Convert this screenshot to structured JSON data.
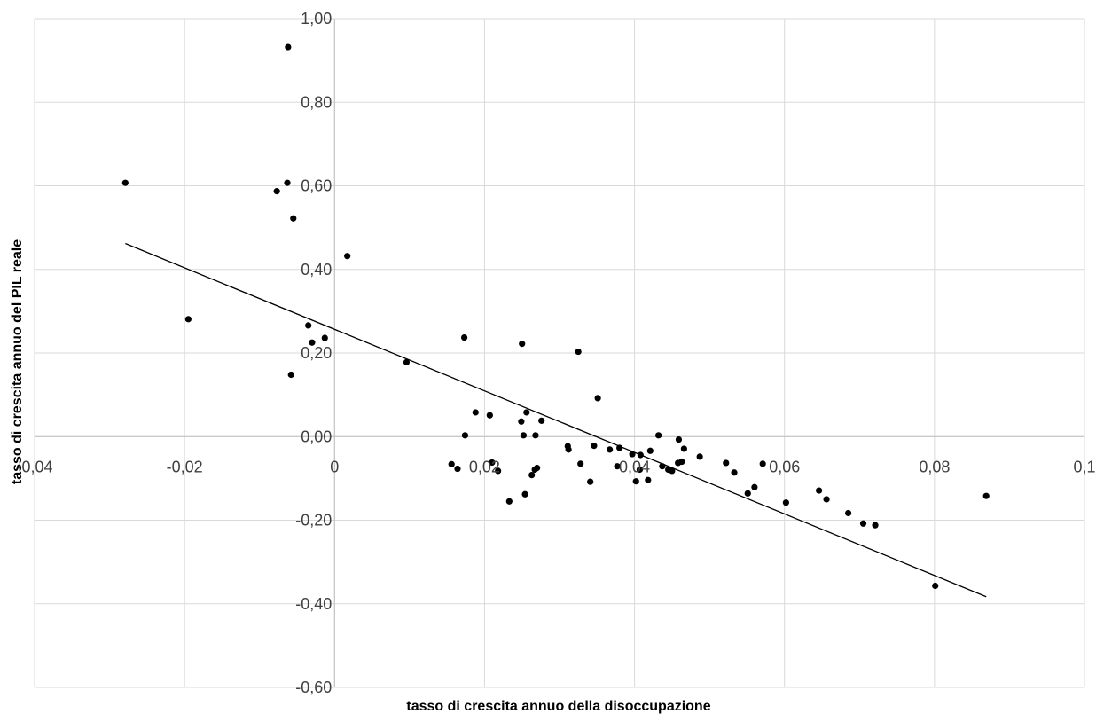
{
  "chart_data": {
    "type": "scatter",
    "title": "",
    "xlabel": "tasso di crescita annuo della disoccupazione",
    "ylabel": "tasso di crescita annuo del PIL reale",
    "xlim": [
      -0.04,
      0.1
    ],
    "ylim": [
      -0.6,
      1.0
    ],
    "x_ticks": [
      -0.04,
      -0.02,
      0,
      0.02,
      0.04,
      0.06,
      0.08,
      0.1
    ],
    "x_tick_labels": [
      "-0,04",
      "-0,02",
      "0",
      "0,02",
      "0,04",
      "0,06",
      "0,08",
      "0,1"
    ],
    "y_ticks": [
      -0.6,
      -0.4,
      -0.2,
      0.0,
      0.2,
      0.4,
      0.6,
      0.8,
      1.0
    ],
    "y_tick_labels": [
      "-0,60",
      "-0,40",
      "-0,20",
      "0,00",
      "0,20",
      "0,40",
      "0,60",
      "0,80",
      "1,00"
    ],
    "grid": true,
    "legend": "none",
    "marker_color": "#000000",
    "trendline": {
      "type": "linear",
      "x": [
        -0.0279,
        0.0869
      ],
      "y": [
        0.462,
        -0.383
      ]
    },
    "points": [
      [
        -0.0279,
        0.607
      ],
      [
        -0.0195,
        0.281
      ],
      [
        -0.0077,
        0.587
      ],
      [
        -0.0063,
        0.607
      ],
      [
        -0.0062,
        0.932
      ],
      [
        -0.0058,
        0.148
      ],
      [
        -0.0055,
        0.522
      ],
      [
        -0.0035,
        0.266
      ],
      [
        -0.003,
        0.225
      ],
      [
        -0.0013,
        0.236
      ],
      [
        0.0017,
        0.432
      ],
      [
        0.0096,
        0.178
      ],
      [
        0.0156,
        -0.066
      ],
      [
        0.0164,
        -0.077
      ],
      [
        0.0173,
        0.237
      ],
      [
        0.0174,
        0.003
      ],
      [
        0.0188,
        0.058
      ],
      [
        0.0207,
        0.051
      ],
      [
        0.021,
        -0.062
      ],
      [
        0.0218,
        -0.082
      ],
      [
        0.0233,
        -0.155
      ],
      [
        0.0249,
        0.036
      ],
      [
        0.025,
        0.222
      ],
      [
        0.0252,
        0.003
      ],
      [
        0.0254,
        -0.138
      ],
      [
        0.0256,
        0.058
      ],
      [
        0.0263,
        -0.092
      ],
      [
        0.0267,
        -0.079
      ],
      [
        0.0268,
        0.003
      ],
      [
        0.027,
        -0.075
      ],
      [
        0.0276,
        0.038
      ],
      [
        0.0311,
        -0.023
      ],
      [
        0.0312,
        -0.031
      ],
      [
        0.0325,
        0.203
      ],
      [
        0.0328,
        -0.065
      ],
      [
        0.0341,
        -0.108
      ],
      [
        0.0346,
        -0.022
      ],
      [
        0.0351,
        0.092
      ],
      [
        0.0367,
        -0.031
      ],
      [
        0.0377,
        -0.071
      ],
      [
        0.038,
        -0.027
      ],
      [
        0.0397,
        -0.042
      ],
      [
        0.0402,
        -0.107
      ],
      [
        0.0407,
        -0.079
      ],
      [
        0.0408,
        -0.044
      ],
      [
        0.0418,
        -0.104
      ],
      [
        0.0421,
        -0.034
      ],
      [
        0.0432,
        0.003
      ],
      [
        0.0437,
        -0.071
      ],
      [
        0.0445,
        -0.079
      ],
      [
        0.045,
        -0.082
      ],
      [
        0.0458,
        -0.063
      ],
      [
        0.0459,
        -0.007
      ],
      [
        0.0463,
        -0.06
      ],
      [
        0.0466,
        -0.029
      ],
      [
        0.0487,
        -0.048
      ],
      [
        0.0522,
        -0.063
      ],
      [
        0.0533,
        -0.086
      ],
      [
        0.0551,
        -0.136
      ],
      [
        0.056,
        -0.121
      ],
      [
        0.0571,
        -0.065
      ],
      [
        0.0602,
        -0.158
      ],
      [
        0.0646,
        -0.129
      ],
      [
        0.0656,
        -0.15
      ],
      [
        0.0685,
        -0.183
      ],
      [
        0.0705,
        -0.208
      ],
      [
        0.0721,
        -0.212
      ],
      [
        0.0801,
        -0.357
      ],
      [
        0.0869,
        -0.142
      ]
    ]
  }
}
